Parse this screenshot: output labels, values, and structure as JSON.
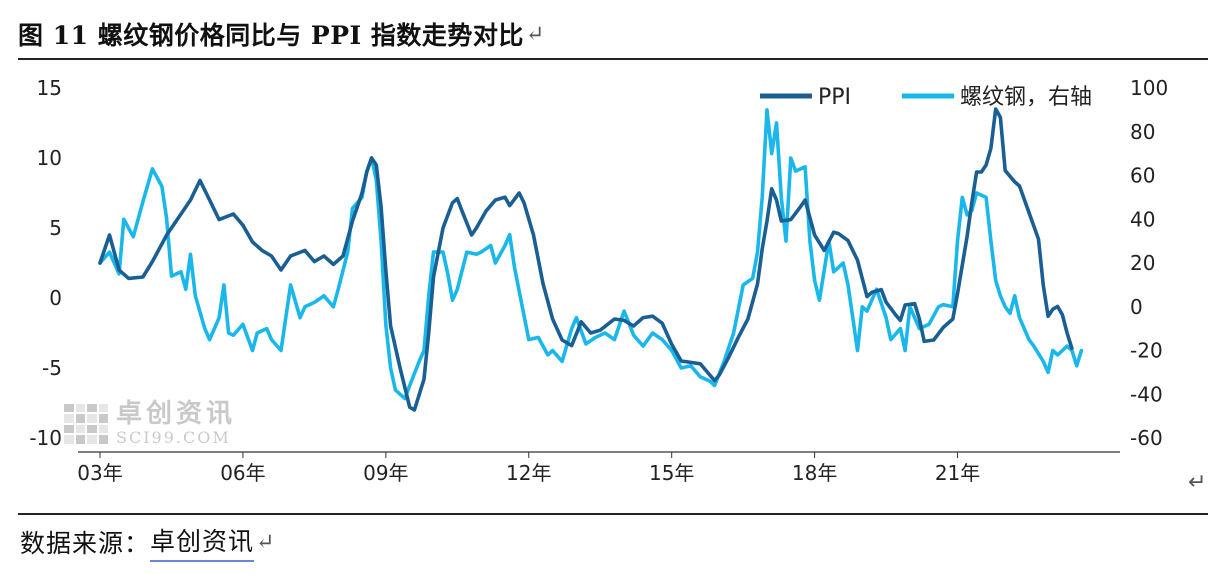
{
  "figure": {
    "title": "图 11  螺纹钢价格同比与 PPI 指数走势对比",
    "return_mark": "↵",
    "source_prefix": "数据来源：",
    "source_name": "卓创资讯"
  },
  "watermark": {
    "cn": "卓创资讯",
    "en": "SCI99.COM"
  },
  "colors": {
    "ppi": "#1a5f94",
    "rebar": "#1ab8ea"
  },
  "chart_data": {
    "type": "line",
    "title": "图 11  螺纹钢价格同比与 PPI 指数走势对比",
    "x_start": 2003.0,
    "x_end": 2024.2,
    "x_ticks": [
      {
        "value": 2003,
        "label": "03年"
      },
      {
        "value": 2006,
        "label": "06年"
      },
      {
        "value": 2009,
        "label": "09年"
      },
      {
        "value": 2012,
        "label": "12年"
      },
      {
        "value": 2015,
        "label": "15年"
      },
      {
        "value": 2018,
        "label": "18年"
      },
      {
        "value": 2021,
        "label": "21年"
      }
    ],
    "y_left": {
      "min": -10,
      "max": 15,
      "ticks": [
        15,
        10,
        5,
        0,
        -5,
        -10
      ]
    },
    "y_right": {
      "min": -60,
      "max": 100,
      "ticks": [
        100,
        80,
        60,
        40,
        20,
        0,
        -20,
        -40,
        -60
      ]
    },
    "legend": {
      "position": "top-right"
    },
    "grid": false,
    "series": [
      {
        "name": "PPI",
        "axis": "left",
        "color": "#1a5f94",
        "points": [
          [
            2003.0,
            2.5
          ],
          [
            2003.2,
            4.5
          ],
          [
            2003.4,
            2.0
          ],
          [
            2003.6,
            1.4
          ],
          [
            2003.9,
            1.5
          ],
          [
            2004.1,
            2.6
          ],
          [
            2004.4,
            4.5
          ],
          [
            2004.7,
            6.0
          ],
          [
            2004.9,
            7.0
          ],
          [
            2005.1,
            8.4
          ],
          [
            2005.3,
            7.0
          ],
          [
            2005.5,
            5.6
          ],
          [
            2005.8,
            6.0
          ],
          [
            2006.0,
            5.2
          ],
          [
            2006.2,
            4.0
          ],
          [
            2006.4,
            3.4
          ],
          [
            2006.6,
            3.0
          ],
          [
            2006.8,
            2.0
          ],
          [
            2007.0,
            3.0
          ],
          [
            2007.3,
            3.4
          ],
          [
            2007.5,
            2.6
          ],
          [
            2007.7,
            3.0
          ],
          [
            2007.9,
            2.4
          ],
          [
            2008.1,
            3.0
          ],
          [
            2008.3,
            5.5
          ],
          [
            2008.5,
            7.5
          ],
          [
            2008.6,
            9.0
          ],
          [
            2008.7,
            10.0
          ],
          [
            2008.8,
            9.5
          ],
          [
            2008.9,
            6.5
          ],
          [
            2009.0,
            2.0
          ],
          [
            2009.1,
            -2.0
          ],
          [
            2009.3,
            -5.0
          ],
          [
            2009.5,
            -7.8
          ],
          [
            2009.6,
            -8.0
          ],
          [
            2009.8,
            -5.8
          ],
          [
            2009.9,
            -2.5
          ],
          [
            2010.0,
            1.5
          ],
          [
            2010.2,
            5.0
          ],
          [
            2010.4,
            6.8
          ],
          [
            2010.5,
            7.1
          ],
          [
            2010.6,
            6.2
          ],
          [
            2010.8,
            4.5
          ],
          [
            2010.9,
            5.0
          ],
          [
            2011.1,
            6.2
          ],
          [
            2011.3,
            7.0
          ],
          [
            2011.5,
            7.2
          ],
          [
            2011.6,
            6.6
          ],
          [
            2011.8,
            7.5
          ],
          [
            2011.9,
            6.8
          ],
          [
            2012.1,
            4.5
          ],
          [
            2012.3,
            1.0
          ],
          [
            2012.5,
            -1.5
          ],
          [
            2012.7,
            -3.0
          ],
          [
            2012.9,
            -3.4
          ],
          [
            2013.1,
            -1.7
          ],
          [
            2013.3,
            -2.5
          ],
          [
            2013.5,
            -2.3
          ],
          [
            2013.8,
            -1.5
          ],
          [
            2014.0,
            -1.6
          ],
          [
            2014.2,
            -2.0
          ],
          [
            2014.4,
            -1.4
          ],
          [
            2014.6,
            -1.3
          ],
          [
            2014.8,
            -1.8
          ],
          [
            2015.0,
            -3.3
          ],
          [
            2015.2,
            -4.5
          ],
          [
            2015.4,
            -4.6
          ],
          [
            2015.6,
            -4.7
          ],
          [
            2015.8,
            -5.5
          ],
          [
            2015.9,
            -5.9
          ],
          [
            2016.0,
            -5.5
          ],
          [
            2016.2,
            -4.2
          ],
          [
            2016.4,
            -2.8
          ],
          [
            2016.6,
            -1.5
          ],
          [
            2016.8,
            1.0
          ],
          [
            2016.9,
            3.5
          ],
          [
            2017.0,
            5.5
          ],
          [
            2017.1,
            7.8
          ],
          [
            2017.2,
            7.0
          ],
          [
            2017.3,
            5.5
          ],
          [
            2017.5,
            5.6
          ],
          [
            2017.7,
            6.5
          ],
          [
            2017.8,
            7.0
          ],
          [
            2018.0,
            4.5
          ],
          [
            2018.2,
            3.4
          ],
          [
            2018.4,
            4.7
          ],
          [
            2018.5,
            4.6
          ],
          [
            2018.7,
            4.1
          ],
          [
            2018.9,
            2.7
          ],
          [
            2019.1,
            0.1
          ],
          [
            2019.2,
            0.4
          ],
          [
            2019.4,
            0.6
          ],
          [
            2019.5,
            -0.3
          ],
          [
            2019.7,
            -1.2
          ],
          [
            2019.8,
            -1.6
          ],
          [
            2019.9,
            -0.5
          ],
          [
            2020.1,
            -0.4
          ],
          [
            2020.2,
            -1.5
          ],
          [
            2020.3,
            -3.1
          ],
          [
            2020.5,
            -3.0
          ],
          [
            2020.7,
            -2.1
          ],
          [
            2020.9,
            -1.5
          ],
          [
            2021.0,
            0.3
          ],
          [
            2021.2,
            4.4
          ],
          [
            2021.3,
            6.8
          ],
          [
            2021.4,
            9.0
          ],
          [
            2021.5,
            9.0
          ],
          [
            2021.6,
            9.5
          ],
          [
            2021.7,
            10.7
          ],
          [
            2021.8,
            13.5
          ],
          [
            2021.9,
            12.9
          ],
          [
            2022.0,
            9.1
          ],
          [
            2022.2,
            8.3
          ],
          [
            2022.3,
            8.0
          ],
          [
            2022.5,
            6.1
          ],
          [
            2022.7,
            4.2
          ],
          [
            2022.8,
            0.9
          ],
          [
            2022.9,
            -1.3
          ],
          [
            2023.0,
            -0.8
          ],
          [
            2023.1,
            -0.6
          ],
          [
            2023.2,
            -1.2
          ],
          [
            2023.3,
            -2.5
          ],
          [
            2023.4,
            -3.6
          ]
        ]
      },
      {
        "name": "螺纹钢，右轴",
        "axis": "right",
        "color": "#1ab8ea",
        "points": [
          [
            2003.0,
            20
          ],
          [
            2003.2,
            25
          ],
          [
            2003.4,
            15
          ],
          [
            2003.5,
            40
          ],
          [
            2003.7,
            32
          ],
          [
            2003.9,
            48
          ],
          [
            2004.1,
            63
          ],
          [
            2004.3,
            55
          ],
          [
            2004.4,
            40
          ],
          [
            2004.5,
            14
          ],
          [
            2004.7,
            16
          ],
          [
            2004.8,
            8
          ],
          [
            2004.9,
            24
          ],
          [
            2005.0,
            5
          ],
          [
            2005.2,
            -10
          ],
          [
            2005.3,
            -15
          ],
          [
            2005.5,
            -5
          ],
          [
            2005.6,
            10
          ],
          [
            2005.7,
            -12
          ],
          [
            2005.8,
            -13
          ],
          [
            2006.0,
            -8
          ],
          [
            2006.2,
            -20
          ],
          [
            2006.3,
            -12
          ],
          [
            2006.5,
            -10
          ],
          [
            2006.6,
            -15
          ],
          [
            2006.8,
            -20
          ],
          [
            2007.0,
            10
          ],
          [
            2007.2,
            -5
          ],
          [
            2007.3,
            0
          ],
          [
            2007.5,
            2
          ],
          [
            2007.7,
            5
          ],
          [
            2007.9,
            0
          ],
          [
            2008.0,
            8
          ],
          [
            2008.2,
            25
          ],
          [
            2008.3,
            45
          ],
          [
            2008.5,
            50
          ],
          [
            2008.6,
            62
          ],
          [
            2008.7,
            68
          ],
          [
            2008.8,
            58
          ],
          [
            2008.9,
            30
          ],
          [
            2009.0,
            -8
          ],
          [
            2009.1,
            -28
          ],
          [
            2009.2,
            -38
          ],
          [
            2009.4,
            -42
          ],
          [
            2009.5,
            -36
          ],
          [
            2009.7,
            -25
          ],
          [
            2009.8,
            -20
          ],
          [
            2009.9,
            5
          ],
          [
            2010.0,
            25
          ],
          [
            2010.2,
            25
          ],
          [
            2010.3,
            15
          ],
          [
            2010.4,
            3
          ],
          [
            2010.5,
            8
          ],
          [
            2010.7,
            25
          ],
          [
            2010.9,
            24
          ],
          [
            2011.0,
            25
          ],
          [
            2011.2,
            28
          ],
          [
            2011.3,
            20
          ],
          [
            2011.5,
            28
          ],
          [
            2011.6,
            33
          ],
          [
            2011.7,
            18
          ],
          [
            2011.9,
            -4
          ],
          [
            2012.0,
            -15
          ],
          [
            2012.2,
            -14
          ],
          [
            2012.4,
            -22
          ],
          [
            2012.5,
            -20
          ],
          [
            2012.7,
            -25
          ],
          [
            2012.9,
            -10
          ],
          [
            2013.0,
            -5
          ],
          [
            2013.2,
            -17
          ],
          [
            2013.4,
            -14
          ],
          [
            2013.6,
            -12
          ],
          [
            2013.8,
            -15
          ],
          [
            2014.0,
            -2
          ],
          [
            2014.2,
            -13
          ],
          [
            2014.4,
            -18
          ],
          [
            2014.6,
            -12
          ],
          [
            2014.8,
            -15
          ],
          [
            2015.0,
            -20
          ],
          [
            2015.2,
            -28
          ],
          [
            2015.4,
            -27
          ],
          [
            2015.6,
            -32
          ],
          [
            2015.8,
            -34
          ],
          [
            2015.9,
            -36
          ],
          [
            2016.1,
            -25
          ],
          [
            2016.3,
            -12
          ],
          [
            2016.5,
            10
          ],
          [
            2016.7,
            13
          ],
          [
            2016.8,
            25
          ],
          [
            2016.9,
            50
          ],
          [
            2017.0,
            90
          ],
          [
            2017.1,
            70
          ],
          [
            2017.2,
            84
          ],
          [
            2017.3,
            50
          ],
          [
            2017.4,
            30
          ],
          [
            2017.5,
            68
          ],
          [
            2017.6,
            62
          ],
          [
            2017.8,
            64
          ],
          [
            2017.9,
            30
          ],
          [
            2018.0,
            12
          ],
          [
            2018.1,
            3
          ],
          [
            2018.3,
            30
          ],
          [
            2018.4,
            16
          ],
          [
            2018.5,
            18
          ],
          [
            2018.6,
            20
          ],
          [
            2018.7,
            10
          ],
          [
            2018.9,
            -20
          ],
          [
            2019.0,
            0
          ],
          [
            2019.1,
            -2
          ],
          [
            2019.3,
            8
          ],
          [
            2019.5,
            -5
          ],
          [
            2019.6,
            -15
          ],
          [
            2019.8,
            -10
          ],
          [
            2019.9,
            -20
          ],
          [
            2020.0,
            0
          ],
          [
            2020.2,
            -10
          ],
          [
            2020.4,
            -8
          ],
          [
            2020.6,
            0
          ],
          [
            2020.7,
            1
          ],
          [
            2020.9,
            0
          ],
          [
            2021.0,
            30
          ],
          [
            2021.1,
            50
          ],
          [
            2021.2,
            42
          ],
          [
            2021.3,
            44
          ],
          [
            2021.4,
            52
          ],
          [
            2021.6,
            50
          ],
          [
            2021.7,
            30
          ],
          [
            2021.8,
            12
          ],
          [
            2021.9,
            5
          ],
          [
            2022.0,
            0
          ],
          [
            2022.1,
            -3
          ],
          [
            2022.2,
            5
          ],
          [
            2022.3,
            -5
          ],
          [
            2022.5,
            -15
          ],
          [
            2022.6,
            -18
          ],
          [
            2022.8,
            -25
          ],
          [
            2022.9,
            -30
          ],
          [
            2023.0,
            -20
          ],
          [
            2023.1,
            -22
          ],
          [
            2023.3,
            -18
          ],
          [
            2023.4,
            -20
          ],
          [
            2023.5,
            -27
          ],
          [
            2023.6,
            -20
          ]
        ]
      }
    ]
  }
}
